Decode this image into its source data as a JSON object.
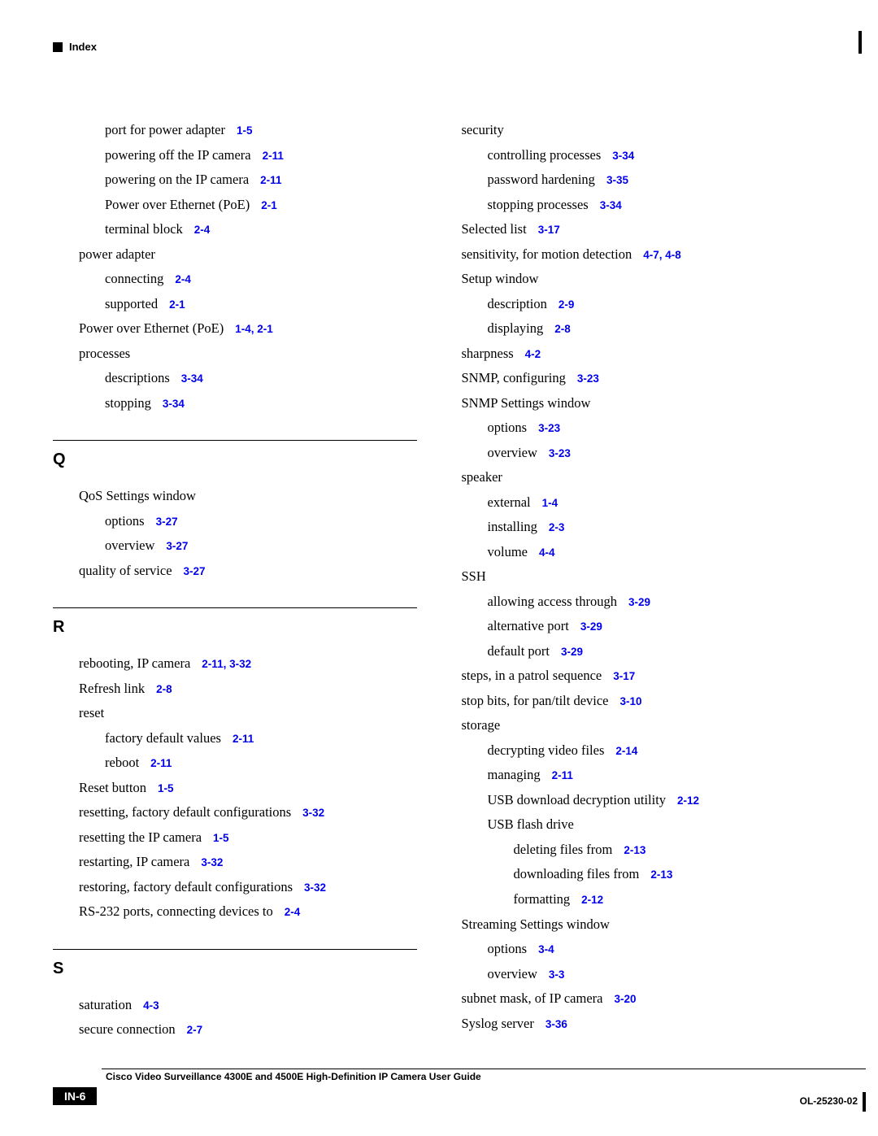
{
  "header": {
    "label": "Index"
  },
  "footer": {
    "title": "Cisco Video Surveillance 4300E and 4500E High-Definition IP Camera User Guide",
    "page": "IN-6",
    "doc_id": "OL-25230-02"
  },
  "left": {
    "pre": [
      {
        "text": "port for power adapter",
        "ref": "1-5",
        "lvl": "l1"
      },
      {
        "text": "powering off the IP camera",
        "ref": "2-11",
        "lvl": "l1"
      },
      {
        "text": "powering on the IP camera",
        "ref": "2-11",
        "lvl": "l1"
      },
      {
        "text": "Power over Ethernet (PoE)",
        "ref": "2-1",
        "lvl": "l1"
      },
      {
        "text": "terminal block",
        "ref": "2-4",
        "lvl": "l1"
      },
      {
        "text": "power adapter",
        "ref": "",
        "lvl": "l0"
      },
      {
        "text": "connecting",
        "ref": "2-4",
        "lvl": "l1"
      },
      {
        "text": "supported",
        "ref": "2-1",
        "lvl": "l1"
      },
      {
        "text": "Power over Ethernet (PoE)",
        "ref": "1-4, 2-1",
        "lvl": "l0"
      },
      {
        "text": "processes",
        "ref": "",
        "lvl": "l0"
      },
      {
        "text": "descriptions",
        "ref": "3-34",
        "lvl": "l1"
      },
      {
        "text": "stopping",
        "ref": "3-34",
        "lvl": "l1"
      }
    ],
    "sections": [
      {
        "letter": "Q",
        "items": [
          {
            "text": "QoS Settings window",
            "ref": "",
            "lvl": "l0"
          },
          {
            "text": "options",
            "ref": "3-27",
            "lvl": "l1"
          },
          {
            "text": "overview",
            "ref": "3-27",
            "lvl": "l1"
          },
          {
            "text": "quality of service",
            "ref": "3-27",
            "lvl": "l0"
          }
        ]
      },
      {
        "letter": "R",
        "items": [
          {
            "text": "rebooting, IP camera",
            "ref": "2-11, 3-32",
            "lvl": "l0"
          },
          {
            "text": "Refresh link",
            "ref": "2-8",
            "lvl": "l0"
          },
          {
            "text": "reset",
            "ref": "",
            "lvl": "l0"
          },
          {
            "text": "factory default values",
            "ref": "2-11",
            "lvl": "l1"
          },
          {
            "text": "reboot",
            "ref": "2-11",
            "lvl": "l1"
          },
          {
            "text": "Reset button",
            "ref": "1-5",
            "lvl": "l0"
          },
          {
            "text": "resetting, factory default configurations",
            "ref": "3-32",
            "lvl": "l0"
          },
          {
            "text": "resetting the IP camera",
            "ref": "1-5",
            "lvl": "l0"
          },
          {
            "text": "restarting, IP camera",
            "ref": "3-32",
            "lvl": "l0"
          },
          {
            "text": "restoring, factory default configurations",
            "ref": "3-32",
            "lvl": "l0"
          },
          {
            "text": "RS-232 ports, connecting devices to",
            "ref": "2-4",
            "lvl": "l0"
          }
        ]
      },
      {
        "letter": "S",
        "items": [
          {
            "text": "saturation",
            "ref": "4-3",
            "lvl": "l0"
          },
          {
            "text": "secure connection",
            "ref": "2-7",
            "lvl": "l0"
          }
        ]
      }
    ]
  },
  "right": {
    "pre": [
      {
        "text": "security",
        "ref": "",
        "lvl": "ln"
      },
      {
        "text": "controlling processes",
        "ref": "3-34",
        "lvl": "l0"
      },
      {
        "text": "password hardening",
        "ref": "3-35",
        "lvl": "l0"
      },
      {
        "text": "stopping processes",
        "ref": "3-34",
        "lvl": "l0"
      },
      {
        "text": "Selected list",
        "ref": "3-17",
        "lvl": "ln"
      },
      {
        "text": "sensitivity, for motion detection",
        "ref": "4-7, 4-8",
        "lvl": "ln"
      },
      {
        "text": "Setup window",
        "ref": "",
        "lvl": "ln"
      },
      {
        "text": "description",
        "ref": "2-9",
        "lvl": "l0"
      },
      {
        "text": "displaying",
        "ref": "2-8",
        "lvl": "l0"
      },
      {
        "text": "sharpness",
        "ref": "4-2",
        "lvl": "ln"
      },
      {
        "text": "SNMP, configuring",
        "ref": "3-23",
        "lvl": "ln"
      },
      {
        "text": "SNMP Settings window",
        "ref": "",
        "lvl": "ln"
      },
      {
        "text": "options",
        "ref": "3-23",
        "lvl": "l0"
      },
      {
        "text": "overview",
        "ref": "3-23",
        "lvl": "l0"
      },
      {
        "text": "speaker",
        "ref": "",
        "lvl": "ln"
      },
      {
        "text": "external",
        "ref": "1-4",
        "lvl": "l0"
      },
      {
        "text": "installing",
        "ref": "2-3",
        "lvl": "l0"
      },
      {
        "text": "volume",
        "ref": "4-4",
        "lvl": "l0"
      },
      {
        "text": "SSH",
        "ref": "",
        "lvl": "ln"
      },
      {
        "text": "allowing access through",
        "ref": "3-29",
        "lvl": "l0"
      },
      {
        "text": "alternative port",
        "ref": "3-29",
        "lvl": "l0"
      },
      {
        "text": "default port",
        "ref": "3-29",
        "lvl": "l0"
      },
      {
        "text": "steps, in a patrol sequence",
        "ref": "3-17",
        "lvl": "ln"
      },
      {
        "text": "stop bits, for pan/tilt device",
        "ref": "3-10",
        "lvl": "ln"
      },
      {
        "text": "storage",
        "ref": "",
        "lvl": "ln"
      },
      {
        "text": "decrypting video files",
        "ref": "2-14",
        "lvl": "l0"
      },
      {
        "text": "managing",
        "ref": "2-11",
        "lvl": "l0"
      },
      {
        "text": "USB download decryption utility",
        "ref": "2-12",
        "lvl": "l0"
      },
      {
        "text": "USB flash drive",
        "ref": "",
        "lvl": "l0"
      },
      {
        "text": "deleting files from",
        "ref": "2-13",
        "lvl": "l1"
      },
      {
        "text": "downloading files from",
        "ref": "2-13",
        "lvl": "l1"
      },
      {
        "text": "formatting",
        "ref": "2-12",
        "lvl": "l1"
      },
      {
        "text": "Streaming Settings window",
        "ref": "",
        "lvl": "ln"
      },
      {
        "text": "options",
        "ref": "3-4",
        "lvl": "l0"
      },
      {
        "text": "overview",
        "ref": "3-3",
        "lvl": "l0"
      },
      {
        "text": "subnet mask, of IP camera",
        "ref": "3-20",
        "lvl": "ln"
      },
      {
        "text": "Syslog server",
        "ref": "3-36",
        "lvl": "ln"
      }
    ],
    "sections": []
  }
}
